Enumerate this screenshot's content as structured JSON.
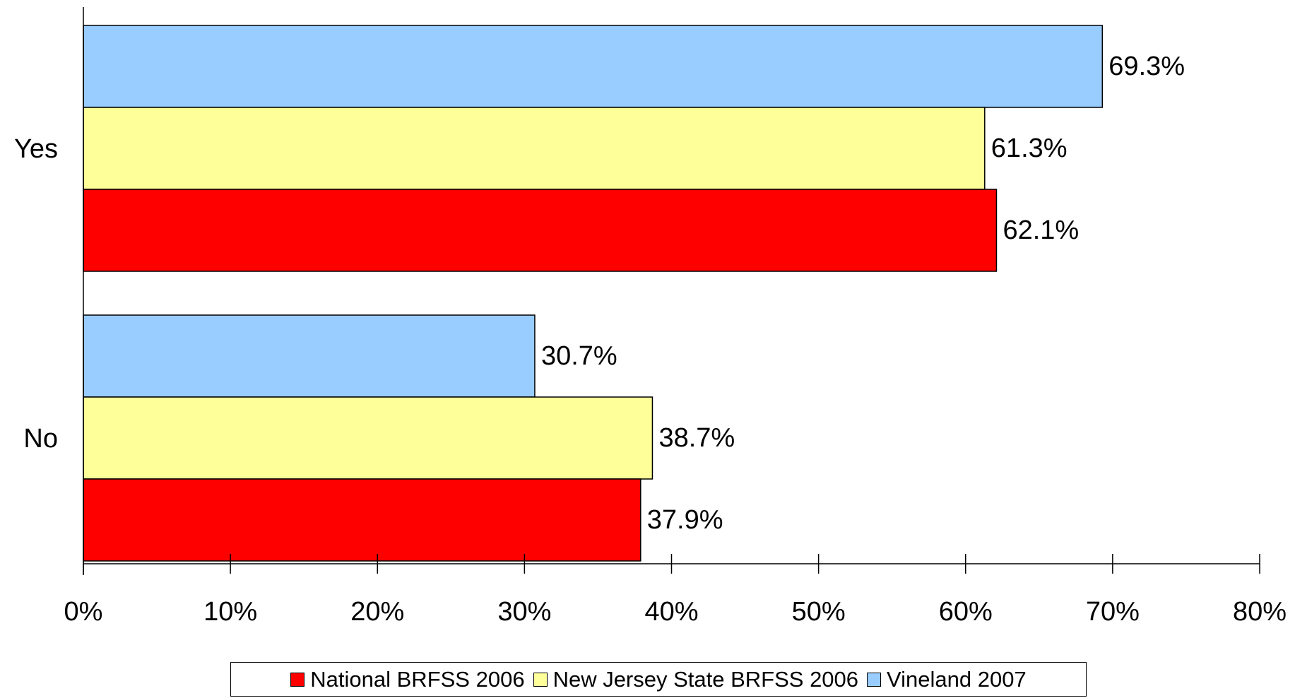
{
  "chart_data": {
    "type": "bar",
    "orientation": "horizontal",
    "categories": [
      "Yes",
      "No"
    ],
    "series": [
      {
        "name": "National BRFSS 2006",
        "color": "#ff0000",
        "values": [
          62.1,
          37.9
        ],
        "labels": [
          "62.1%",
          "37.9%"
        ]
      },
      {
        "name": "New Jersey State BRFSS 2006",
        "color": "#ffff99",
        "values": [
          61.3,
          38.7
        ],
        "labels": [
          "61.3%",
          "38.7%"
        ]
      },
      {
        "name": "Vineland 2007",
        "color": "#99ccff",
        "values": [
          69.3,
          30.7
        ],
        "labels": [
          "69.3%",
          "30.7%"
        ]
      }
    ],
    "xlim": [
      0,
      80
    ],
    "xticks": [
      "0%",
      "10%",
      "20%",
      "30%",
      "40%",
      "50%",
      "60%",
      "70%",
      "80%"
    ],
    "grid": false,
    "legend_position": "bottom"
  }
}
